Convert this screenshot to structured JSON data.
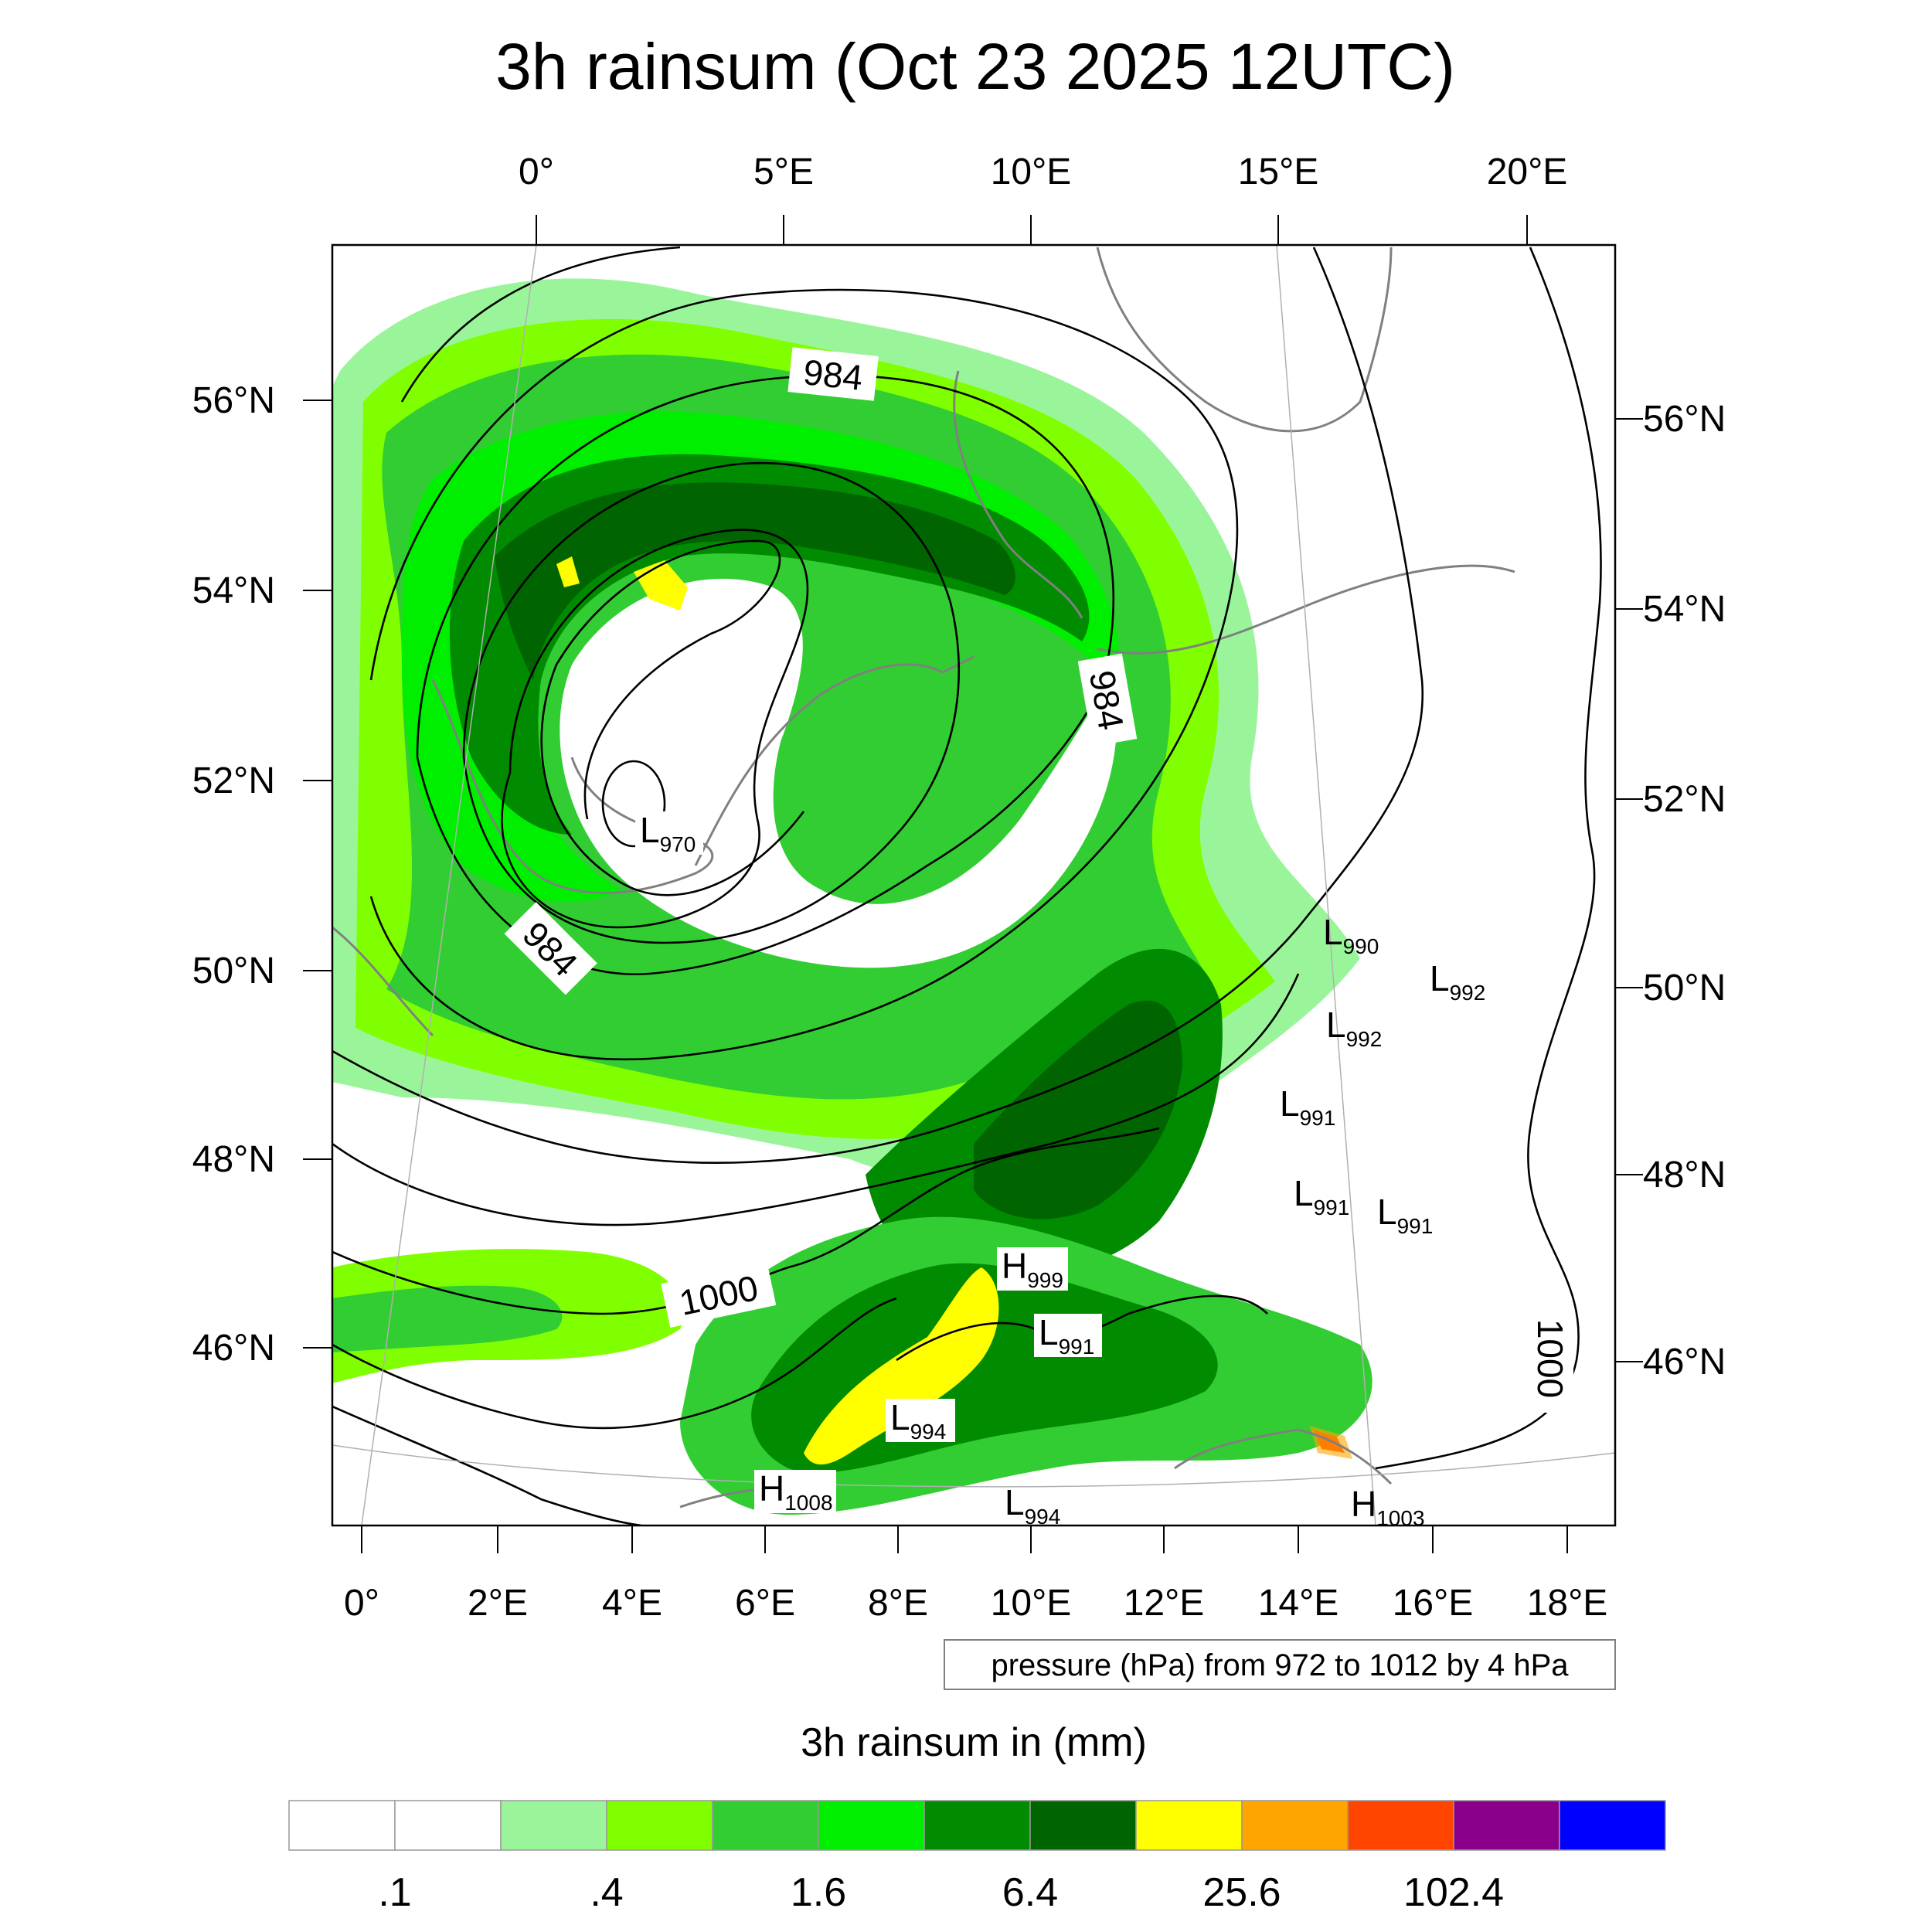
{
  "title": "3h rainsum (Oct 23 2025 12UTC)",
  "top_lon_labels": [
    "0°",
    "5°E",
    "10°E",
    "15°E",
    "20°E"
  ],
  "bottom_lon_labels": [
    "0°",
    "2°E",
    "4°E",
    "6°E",
    "8°E",
    "10°E",
    "12°E",
    "14°E",
    "16°E",
    "18°E"
  ],
  "left_lat_labels": [
    "56°N",
    "54°N",
    "52°N",
    "50°N",
    "48°N",
    "46°N"
  ],
  "right_lat_labels": [
    "56°N",
    "54°N",
    "52°N",
    "50°N",
    "48°N",
    "46°N"
  ],
  "contour_info": "pressure (hPa) from 972 to 1012 by 4 hPa",
  "colorbar": {
    "title": "3h rainsum in (mm)",
    "colors": [
      "#ffffff",
      "#ffffff",
      "#9af59a",
      "#80ff00",
      "#32cd32",
      "#00ee00",
      "#008b00",
      "#006400",
      "#ffff00",
      "#ffa500",
      "#ff4500",
      "#8b008b",
      "#0000ff"
    ],
    "labels": [
      ".1",
      ".4",
      "1.6",
      "6.4",
      "25.6",
      "102.4"
    ]
  },
  "contour_labels": [
    {
      "text": "984"
    },
    {
      "text": "984"
    },
    {
      "text": "984"
    },
    {
      "text": "1000"
    },
    {
      "text": "1000"
    }
  ],
  "pressure_centers": [
    {
      "type": "L",
      "value": "970"
    },
    {
      "type": "L",
      "value": "990"
    },
    {
      "type": "L",
      "value": "992"
    },
    {
      "type": "L",
      "value": "992"
    },
    {
      "type": "L",
      "value": "991"
    },
    {
      "type": "L",
      "value": "991"
    },
    {
      "type": "L",
      "value": "991"
    },
    {
      "type": "H",
      "value": "999"
    },
    {
      "type": "L",
      "value": "991"
    },
    {
      "type": "L",
      "value": "994"
    },
    {
      "type": "H",
      "value": "1008"
    },
    {
      "type": "L",
      "value": "994"
    },
    {
      "type": "H",
      "value": "1003"
    }
  ]
}
